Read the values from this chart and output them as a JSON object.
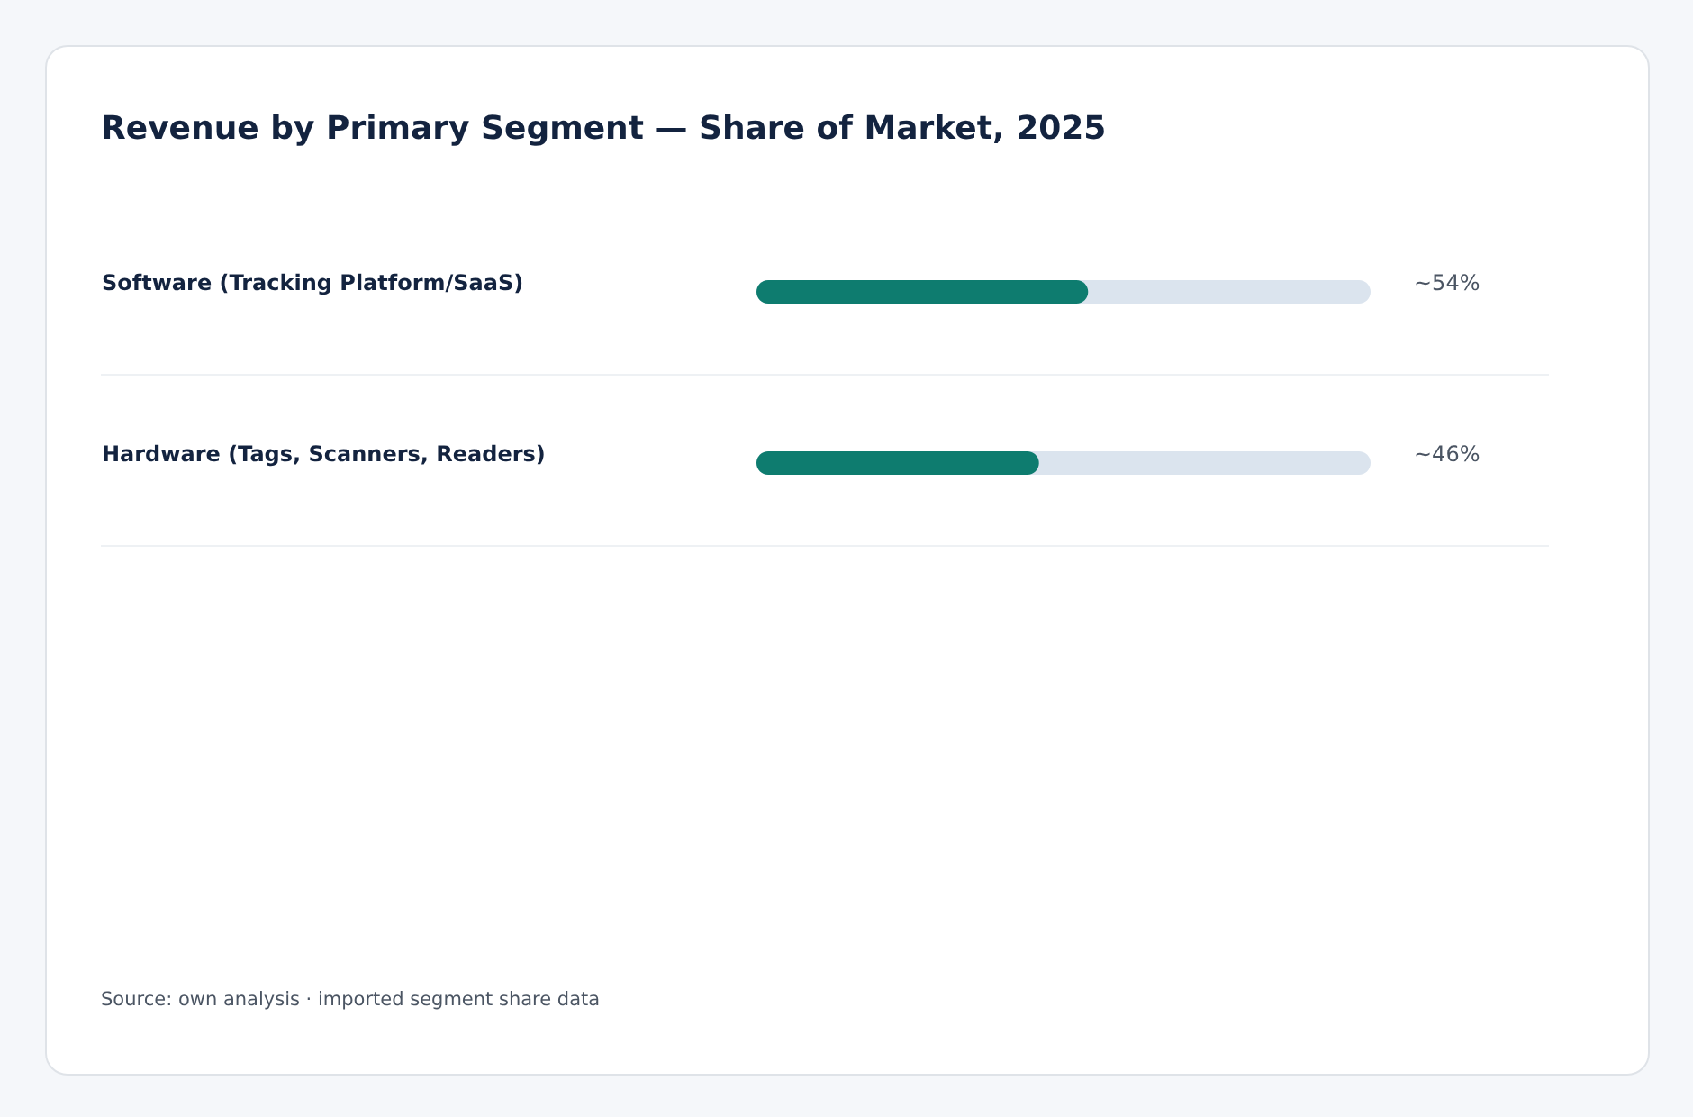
{
  "chart_data": {
    "type": "bar",
    "orientation": "horizontal",
    "title": "Revenue by Primary Segment — Share of Market, 2025",
    "categories": [
      "Software (Tracking Platform/SaaS)",
      "Hardware (Tags, Scanners, Readers)"
    ],
    "values": [
      54,
      46
    ],
    "value_labels": [
      "~54%",
      "~46%"
    ],
    "color": "#0e7c6f",
    "xlim": [
      0,
      100
    ],
    "tick_labels": "y",
    "grid": "y",
    "annotations": [
      "Source: own analysis · imported segment share data"
    ]
  }
}
